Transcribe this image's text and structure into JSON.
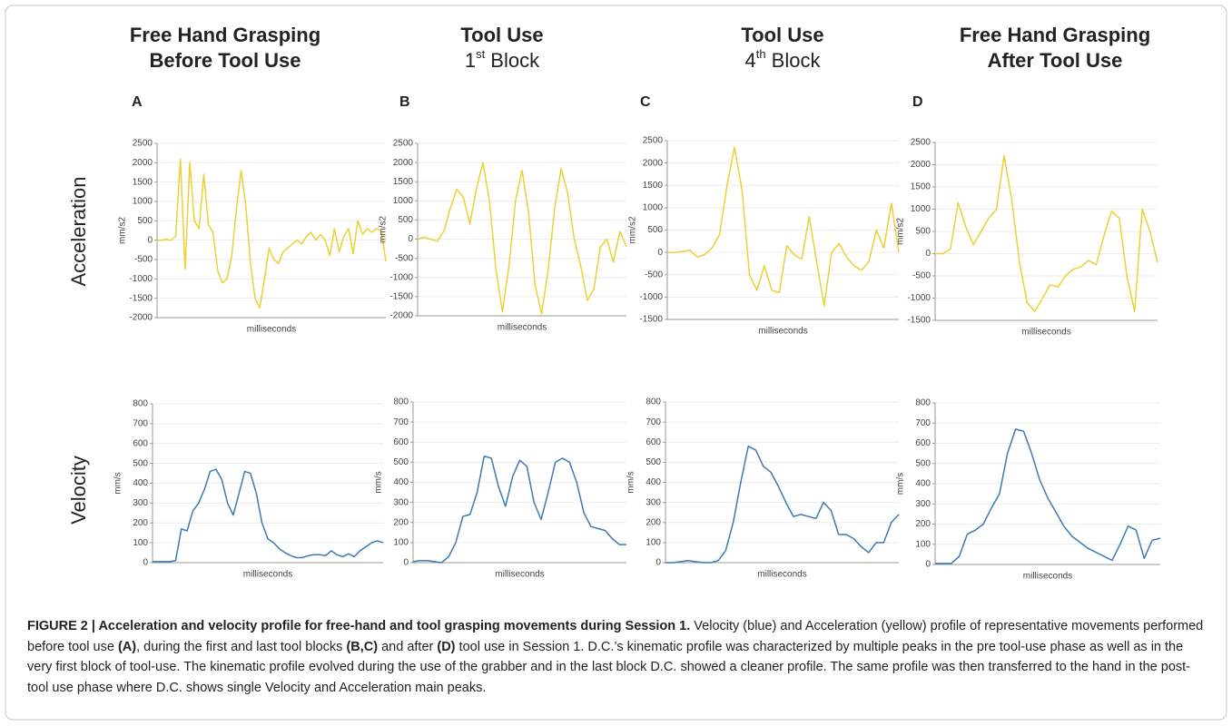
{
  "headers": [
    {
      "title": "Free Hand Grasping",
      "subtitle": "Before Tool Use",
      "subtitle_color": "#5f9be3"
    },
    {
      "title": "Tool Use",
      "title_color": "#8b1a12",
      "ordinal": "1",
      "suffix": "st",
      "subtitle": "Block"
    },
    {
      "title": "Tool Use",
      "title_color": "#8b1a12",
      "ordinal": "4",
      "suffix": "th",
      "subtitle": "Block"
    },
    {
      "title": "Free Hand Grasping",
      "subtitle": "After Tool Use",
      "subtitle_color": "#8dc04f"
    }
  ],
  "row_labels": [
    "Acceleration",
    "Velocity"
  ],
  "caption": [
    {
      "text": "FIGURE 2 | Acceleration and velocity profile for free-hand and tool grasping movements during Session 1.",
      "bold": true
    },
    {
      "text": " Velocity (blue) and Acceleration (yellow) profile of representative movements performed before tool use ",
      "bold": false
    },
    {
      "text": "(A)",
      "bold": true
    },
    {
      "text": ", during the first and last tool blocks ",
      "bold": false
    },
    {
      "text": "(B,C)",
      "bold": true
    },
    {
      "text": " and after ",
      "bold": false
    },
    {
      "text": "(D)",
      "bold": true
    },
    {
      "text": " tool use in Session 1. D.C.’s kinematic profile was characterized by multiple peaks in the pre tool-use phase as well as in the very first block of tool-use. The kinematic profile evolved during the use of the grabber and in the last block D.C. showed a cleaner profile. The same profile was then transferred to the hand in the post-tool use phase where D.C. shows single Velocity and Acceleration main peaks.",
      "bold": false
    }
  ],
  "chart_data": [
    {
      "type": "line",
      "panel": "A",
      "ylabel": "mm/s2",
      "xlabel": "milliseconds",
      "color": "#ecd034",
      "grid": true,
      "ylim": [
        -2000,
        2500
      ],
      "yticks": [
        -2000,
        -1500,
        -1000,
        -500,
        0,
        500,
        1000,
        1500,
        2000,
        2500
      ],
      "values": [
        0,
        0,
        20,
        0,
        100,
        2100,
        -750,
        2000,
        500,
        300,
        1700,
        400,
        200,
        -800,
        -1100,
        -1000,
        -400,
        800,
        1800,
        900,
        -600,
        -1500,
        -1750,
        -1000,
        -200,
        -500,
        -600,
        -300,
        -200,
        -100,
        0,
        -100,
        100,
        200,
        0,
        150,
        0,
        -400,
        300,
        -300,
        100,
        300,
        -350,
        500,
        150,
        300,
        200,
        300,
        250,
        -550
      ]
    },
    {
      "type": "line",
      "panel": "B",
      "ylabel": "mm/s2",
      "xlabel": "milliseconds",
      "color": "#ecd034",
      "grid": true,
      "ylim": [
        -2000,
        2500
      ],
      "yticks": [
        -2000,
        -1500,
        -1000,
        -500,
        0,
        500,
        1000,
        1500,
        2000,
        2500
      ],
      "values": [
        0,
        50,
        0,
        -50,
        200,
        800,
        1300,
        1100,
        400,
        1300,
        2000,
        1000,
        -800,
        -1900,
        -700,
        1000,
        1800,
        700,
        -1200,
        -1950,
        -800,
        800,
        1850,
        1200,
        0,
        -700,
        -1600,
        -1300,
        -200,
        0,
        -600,
        200,
        -200
      ]
    },
    {
      "type": "line",
      "panel": "C",
      "ylabel": "mm/s2",
      "xlabel": "milliseconds",
      "color": "#ecd034",
      "grid": true,
      "ylim": [
        -1500,
        2500
      ],
      "yticks": [
        -1500,
        -1000,
        -500,
        0,
        500,
        1000,
        1500,
        2000,
        2500
      ],
      "values": [
        0,
        0,
        20,
        50,
        -100,
        -50,
        100,
        400,
        1500,
        2350,
        1400,
        -500,
        -850,
        -300,
        -850,
        -900,
        150,
        -50,
        -150,
        800,
        -200,
        -1200,
        0,
        200,
        -100,
        -300,
        -400,
        -200,
        500,
        100,
        1100,
        0
      ]
    },
    {
      "type": "line",
      "panel": "D",
      "ylabel": "mm/s2",
      "xlabel": "milliseconds",
      "color": "#ecd034",
      "grid": true,
      "ylim": [
        -1500,
        2500
      ],
      "yticks": [
        -1500,
        -1000,
        -500,
        0,
        500,
        1000,
        1500,
        2000,
        2500
      ],
      "values": [
        0,
        0,
        100,
        1150,
        600,
        200,
        500,
        800,
        1000,
        2200,
        1200,
        -200,
        -1100,
        -1300,
        -1000,
        -700,
        -750,
        -500,
        -350,
        -300,
        -150,
        -250,
        400,
        950,
        800,
        -500,
        -1300,
        1000,
        500,
        -200
      ]
    },
    {
      "type": "line",
      "ylabel": "mm/s",
      "xlabel": "milliseconds",
      "color": "#3d79b8",
      "grid": true,
      "ylim": [
        0,
        800
      ],
      "yticks": [
        0,
        100,
        200,
        300,
        400,
        500,
        600,
        700,
        800
      ],
      "values": [
        5,
        5,
        5,
        5,
        10,
        170,
        160,
        260,
        300,
        370,
        460,
        470,
        420,
        300,
        240,
        350,
        460,
        450,
        350,
        200,
        120,
        100,
        70,
        50,
        35,
        25,
        25,
        35,
        40,
        40,
        35,
        60,
        40,
        30,
        45,
        30,
        60,
        80,
        100,
        110,
        100
      ]
    },
    {
      "type": "line",
      "ylabel": "mm/s",
      "xlabel": "milliseconds",
      "color": "#3d79b8",
      "grid": true,
      "ylim": [
        0,
        800
      ],
      "yticks": [
        0,
        100,
        200,
        300,
        400,
        500,
        600,
        700,
        800
      ],
      "values": [
        5,
        10,
        10,
        5,
        0,
        30,
        100,
        230,
        240,
        350,
        530,
        520,
        380,
        280,
        430,
        510,
        480,
        300,
        215,
        350,
        500,
        520,
        500,
        400,
        250,
        180,
        170,
        160,
        120,
        90,
        90
      ]
    },
    {
      "type": "line",
      "ylabel": "mm/s",
      "xlabel": "milliseconds",
      "color": "#3d79b8",
      "grid": true,
      "ylim": [
        0,
        800
      ],
      "yticks": [
        0,
        100,
        200,
        300,
        400,
        500,
        600,
        700,
        800
      ],
      "values": [
        0,
        0,
        5,
        10,
        5,
        0,
        0,
        10,
        60,
        200,
        400,
        580,
        560,
        480,
        450,
        380,
        300,
        230,
        240,
        230,
        220,
        300,
        260,
        140,
        140,
        120,
        80,
        50,
        100,
        100,
        200,
        240
      ]
    },
    {
      "type": "line",
      "ylabel": "mm/s",
      "xlabel": "milliseconds",
      "color": "#3d79b8",
      "grid": true,
      "ylim": [
        0,
        800
      ],
      "yticks": [
        0,
        100,
        200,
        300,
        400,
        500,
        600,
        700,
        800
      ],
      "values": [
        5,
        5,
        5,
        40,
        150,
        170,
        200,
        280,
        350,
        550,
        670,
        660,
        550,
        420,
        330,
        260,
        190,
        140,
        110,
        80,
        60,
        40,
        20,
        100,
        190,
        170,
        30,
        120,
        130
      ]
    }
  ]
}
